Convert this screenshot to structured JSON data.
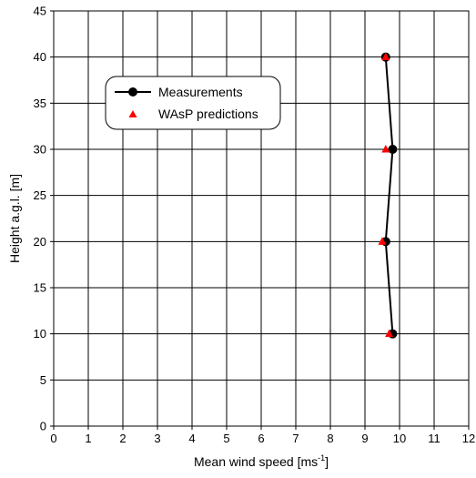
{
  "chart_data": {
    "type": "line",
    "title": "",
    "xlabel": "Mean wind speed [ms",
    "xlabel_superscript": "-1",
    "xlabel_suffix": "]",
    "ylabel": "Height a.g.l. [m]",
    "xlim": [
      0,
      12
    ],
    "ylim": [
      0,
      45
    ],
    "x_ticks": [
      "0",
      "1",
      "2",
      "3",
      "4",
      "5",
      "6",
      "7",
      "8",
      "9",
      "10",
      "11",
      "12"
    ],
    "y_ticks": [
      "0",
      "5",
      "10",
      "15",
      "20",
      "25",
      "30",
      "35",
      "40",
      "45"
    ],
    "grid": true,
    "legend_position": "upper-left",
    "series": [
      {
        "name": "Measurements",
        "marker": "circle",
        "line": true,
        "color": "#000000",
        "points": [
          {
            "x": 9.8,
            "y": 10
          },
          {
            "x": 9.6,
            "y": 20
          },
          {
            "x": 9.8,
            "y": 30
          },
          {
            "x": 9.6,
            "y": 40
          }
        ]
      },
      {
        "name": "WAsP predictions",
        "marker": "triangle",
        "line": false,
        "color": "#ff0000",
        "points": [
          {
            "x": 9.7,
            "y": 10
          },
          {
            "x": 9.5,
            "y": 20
          },
          {
            "x": 9.6,
            "y": 30
          },
          {
            "x": 9.6,
            "y": 40
          }
        ]
      }
    ]
  }
}
